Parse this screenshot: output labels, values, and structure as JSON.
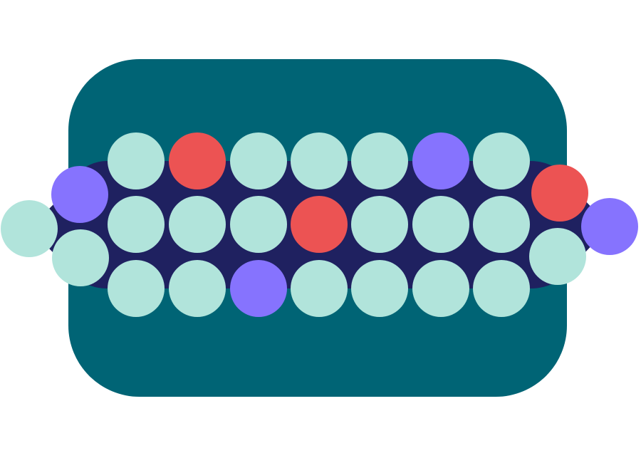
{
  "colors": {
    "background": "#ffffff",
    "panel": "#006475",
    "chain": "#1f2160",
    "mint": "#b1e4db",
    "coral": "#ec5353",
    "violet": "#8673fe"
  },
  "tokens": {
    "top_row": [
      "mint",
      "coral",
      "mint",
      "mint",
      "mint",
      "violet",
      "mint"
    ],
    "middle_row": [
      "mint",
      "mint",
      "mint",
      "coral",
      "mint",
      "mint",
      "mint"
    ],
    "bottom_row": [
      "mint",
      "mint",
      "violet",
      "mint",
      "mint",
      "mint",
      "mint"
    ],
    "left_end": [
      "violet",
      "mint",
      "mint"
    ],
    "right_end": [
      "coral",
      "violet",
      "mint"
    ]
  }
}
